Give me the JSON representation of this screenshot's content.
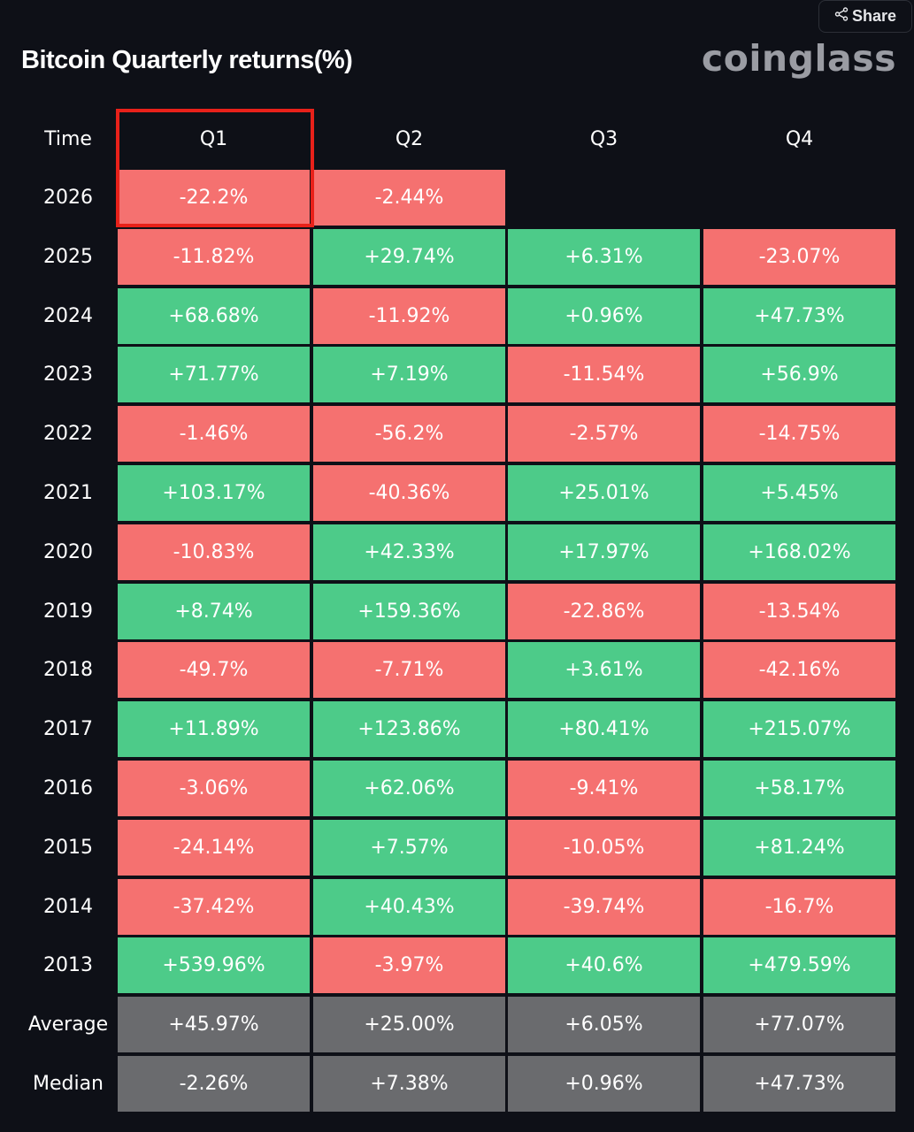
{
  "title": "Bitcoin Quarterly returns(%)",
  "brand": "coinglass",
  "share_label": "Share",
  "icons": {
    "share": "share-icon"
  },
  "colors": {
    "background": "#0e1017",
    "positive": "#4dcb89",
    "negative": "#f57170",
    "summary": "#6a6b6e",
    "highlight": "#e8211a"
  },
  "chart_data": {
    "type": "table",
    "title": "Bitcoin Quarterly returns(%)",
    "row_header": "Time",
    "columns": [
      "Q1",
      "Q2",
      "Q3",
      "Q4"
    ],
    "highlighted_column": "Q1",
    "highlighted_row": "2026",
    "rows": [
      {
        "label": "2026",
        "values": [
          -22.2,
          -2.44,
          null,
          null
        ],
        "text": [
          "-22.2%",
          "-2.44%",
          "",
          ""
        ]
      },
      {
        "label": "2025",
        "values": [
          -11.82,
          29.74,
          6.31,
          -23.07
        ],
        "text": [
          "-11.82%",
          "+29.74%",
          "+6.31%",
          "-23.07%"
        ]
      },
      {
        "label": "2024",
        "values": [
          68.68,
          -11.92,
          0.96,
          47.73
        ],
        "text": [
          "+68.68%",
          "-11.92%",
          "+0.96%",
          "+47.73%"
        ]
      },
      {
        "label": "2023",
        "values": [
          71.77,
          7.19,
          -11.54,
          56.9
        ],
        "text": [
          "+71.77%",
          "+7.19%",
          "-11.54%",
          "+56.9%"
        ]
      },
      {
        "label": "2022",
        "values": [
          -1.46,
          -56.2,
          -2.57,
          -14.75
        ],
        "text": [
          "-1.46%",
          "-56.2%",
          "-2.57%",
          "-14.75%"
        ]
      },
      {
        "label": "2021",
        "values": [
          103.17,
          -40.36,
          25.01,
          5.45
        ],
        "text": [
          "+103.17%",
          "-40.36%",
          "+25.01%",
          "+5.45%"
        ]
      },
      {
        "label": "2020",
        "values": [
          -10.83,
          42.33,
          17.97,
          168.02
        ],
        "text": [
          "-10.83%",
          "+42.33%",
          "+17.97%",
          "+168.02%"
        ]
      },
      {
        "label": "2019",
        "values": [
          8.74,
          159.36,
          -22.86,
          -13.54
        ],
        "text": [
          "+8.74%",
          "+159.36%",
          "-22.86%",
          "-13.54%"
        ]
      },
      {
        "label": "2018",
        "values": [
          -49.7,
          -7.71,
          3.61,
          -42.16
        ],
        "text": [
          "-49.7%",
          "-7.71%",
          "+3.61%",
          "-42.16%"
        ]
      },
      {
        "label": "2017",
        "values": [
          11.89,
          123.86,
          80.41,
          215.07
        ],
        "text": [
          "+11.89%",
          "+123.86%",
          "+80.41%",
          "+215.07%"
        ]
      },
      {
        "label": "2016",
        "values": [
          -3.06,
          62.06,
          -9.41,
          58.17
        ],
        "text": [
          "-3.06%",
          "+62.06%",
          "-9.41%",
          "+58.17%"
        ]
      },
      {
        "label": "2015",
        "values": [
          -24.14,
          7.57,
          -10.05,
          81.24
        ],
        "text": [
          "-24.14%",
          "+7.57%",
          "-10.05%",
          "+81.24%"
        ]
      },
      {
        "label": "2014",
        "values": [
          -37.42,
          40.43,
          -39.74,
          -16.7
        ],
        "text": [
          "-37.42%",
          "+40.43%",
          "-39.74%",
          "-16.7%"
        ]
      },
      {
        "label": "2013",
        "values": [
          539.96,
          -3.97,
          40.6,
          479.59
        ],
        "text": [
          "+539.96%",
          "-3.97%",
          "+40.6%",
          "+479.59%"
        ]
      }
    ],
    "summary_rows": [
      {
        "label": "Average",
        "values": [
          45.97,
          25.0,
          6.05,
          77.07
        ],
        "text": [
          "+45.97%",
          "+25.00%",
          "+6.05%",
          "+77.07%"
        ]
      },
      {
        "label": "Median",
        "values": [
          -2.26,
          7.38,
          0.96,
          47.73
        ],
        "text": [
          "-2.26%",
          "+7.38%",
          "+0.96%",
          "+47.73%"
        ]
      }
    ]
  }
}
